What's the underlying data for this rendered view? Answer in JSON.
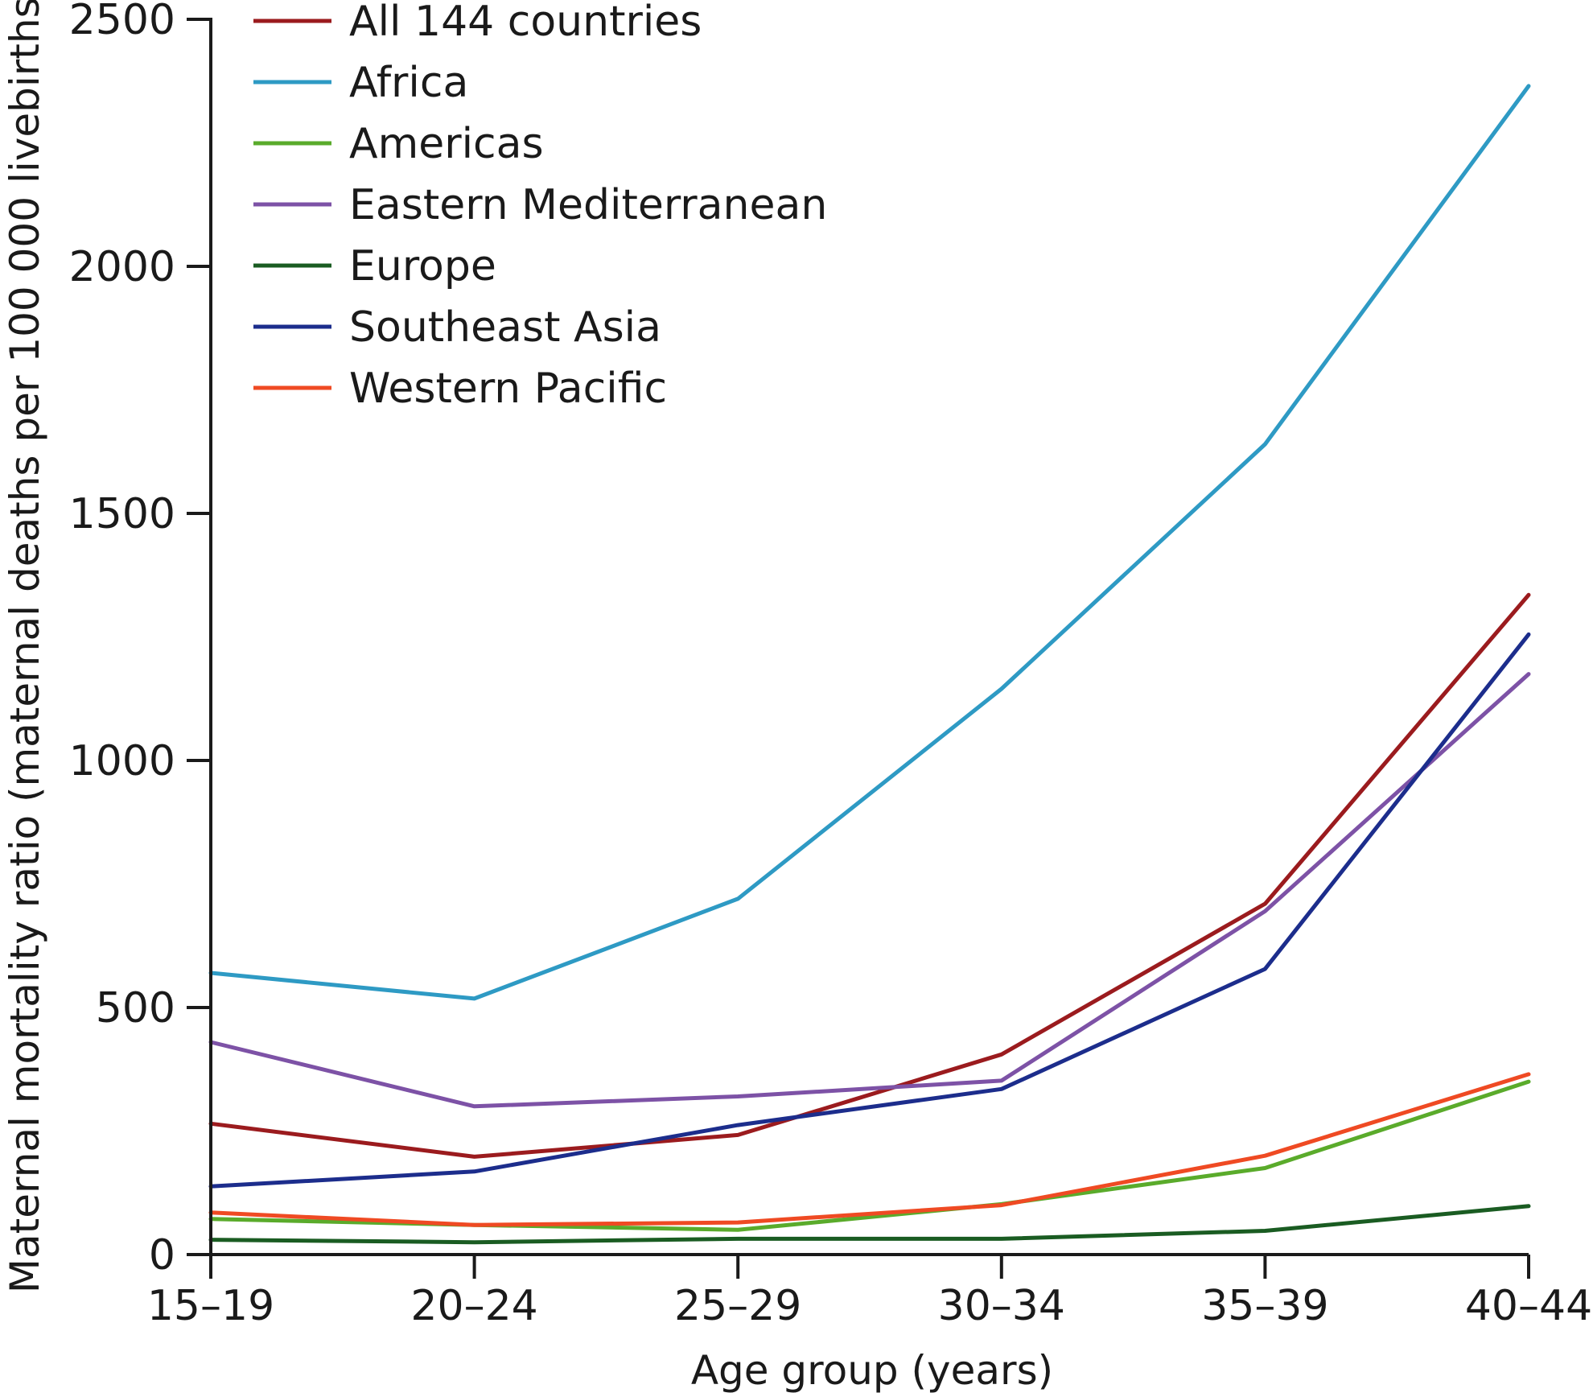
{
  "chart_data": {
    "type": "line",
    "title": "",
    "xlabel": "Age group (years)",
    "ylabel": "Maternal mortality ratio (maternal deaths per 100 000 livebirths)",
    "ylim": [
      0,
      2500
    ],
    "yticks": [
      0,
      500,
      1000,
      1500,
      2000,
      2500
    ],
    "ytick_labels": [
      "0",
      "500",
      "1000",
      "1500",
      "2000",
      "2500"
    ],
    "categories": [
      "15–19",
      "20–24",
      "25–29",
      "30–34",
      "35–39",
      "40–44"
    ],
    "legend_position": "top-left",
    "grid": false,
    "series": [
      {
        "name": "All 144 countries",
        "color": "#9b1b1e",
        "values": [
          265,
          198,
          242,
          405,
          710,
          1335
        ]
      },
      {
        "name": "Africa",
        "color": "#2e9ac4",
        "values": [
          570,
          518,
          720,
          1145,
          1640,
          2365
        ]
      },
      {
        "name": "Americas",
        "color": "#5aab2b",
        "values": [
          72,
          60,
          50,
          102,
          175,
          350
        ]
      },
      {
        "name": "Eastern Mediterranean",
        "color": "#7d52a6",
        "values": [
          430,
          300,
          320,
          352,
          695,
          1175
        ]
      },
      {
        "name": "Europe",
        "color": "#1a5c22",
        "values": [
          30,
          25,
          32,
          32,
          48,
          98
        ]
      },
      {
        "name": "Southeast Asia",
        "color": "#1c2d8c",
        "values": [
          138,
          168,
          262,
          335,
          578,
          1255
        ]
      },
      {
        "name": "Western Pacific",
        "color": "#ef4a23",
        "values": [
          85,
          60,
          65,
          100,
          200,
          365
        ]
      }
    ]
  }
}
